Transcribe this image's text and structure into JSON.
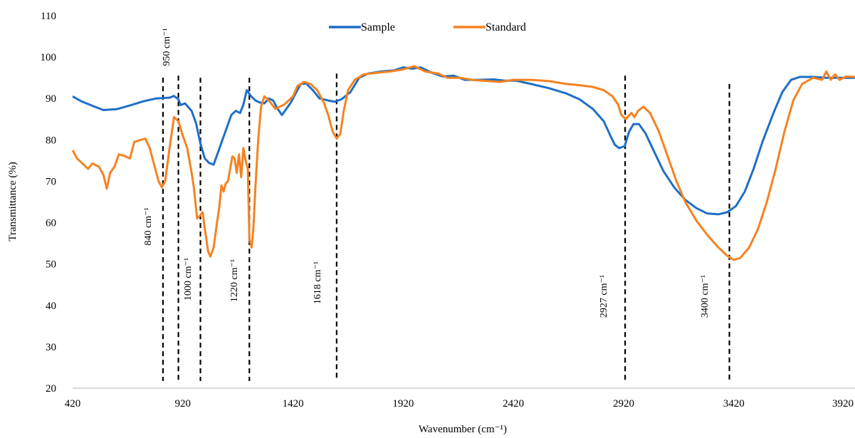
{
  "chart_data": {
    "type": "line",
    "xlabel": "Wavenumber (cm⁻¹)",
    "ylabel": "Transmittance (%)",
    "xlim": [
      420,
      3970
    ],
    "ylim": [
      20,
      110
    ],
    "x_ticks": [
      420,
      920,
      1420,
      1920,
      2420,
      2920,
      3420,
      3920
    ],
    "x_tick_labels": [
      "420",
      "920",
      "1420",
      "1920",
      "2420",
      "2920",
      "3420",
      "3920"
    ],
    "y_ticks": [
      20,
      30,
      40,
      50,
      60,
      70,
      80,
      90,
      100,
      110
    ],
    "y_tick_labels": [
      "20",
      "30",
      "40",
      "50",
      "60",
      "70",
      "80",
      "90",
      "100",
      "110"
    ],
    "grid": false,
    "legend_position": "top-center",
    "series": [
      {
        "name": "Sample",
        "color": "#1f6fc6",
        "points": [
          [
            420,
            90.5
          ],
          [
            460,
            89.3
          ],
          [
            520,
            88
          ],
          [
            560,
            87.2
          ],
          [
            620,
            87.4
          ],
          [
            680,
            88.3
          ],
          [
            740,
            89.3
          ],
          [
            800,
            90
          ],
          [
            860,
            90.2
          ],
          [
            880,
            90.6
          ],
          [
            900,
            89.8
          ],
          [
            910,
            88.4
          ],
          [
            930,
            88.8
          ],
          [
            960,
            87
          ],
          [
            980,
            84
          ],
          [
            1000,
            79
          ],
          [
            1020,
            75.5
          ],
          [
            1040,
            74.4
          ],
          [
            1060,
            74
          ],
          [
            1080,
            77
          ],
          [
            1100,
            80
          ],
          [
            1120,
            83
          ],
          [
            1140,
            86
          ],
          [
            1160,
            87
          ],
          [
            1180,
            86.5
          ],
          [
            1195,
            88.5
          ],
          [
            1210,
            92
          ],
          [
            1230,
            90.5
          ],
          [
            1250,
            89.5
          ],
          [
            1270,
            89
          ],
          [
            1290,
            88.8
          ],
          [
            1310,
            90
          ],
          [
            1330,
            89.5
          ],
          [
            1350,
            87.5
          ],
          [
            1370,
            86
          ],
          [
            1390,
            87.5
          ],
          [
            1410,
            89
          ],
          [
            1430,
            91
          ],
          [
            1455,
            93.5
          ],
          [
            1480,
            93.6
          ],
          [
            1510,
            92
          ],
          [
            1540,
            90
          ],
          [
            1580,
            89.5
          ],
          [
            1610,
            89.2
          ],
          [
            1640,
            89.8
          ],
          [
            1680,
            91.5
          ],
          [
            1720,
            95
          ],
          [
            1760,
            96
          ],
          [
            1820,
            96.5
          ],
          [
            1880,
            96.8
          ],
          [
            1920,
            97.5
          ],
          [
            1960,
            97.2
          ],
          [
            2000,
            97.5
          ],
          [
            2050,
            96.2
          ],
          [
            2100,
            95.3
          ],
          [
            2150,
            95.5
          ],
          [
            2200,
            94.5
          ],
          [
            2260,
            94.5
          ],
          [
            2330,
            94.6
          ],
          [
            2380,
            94.3
          ],
          [
            2430,
            94.3
          ],
          [
            2500,
            93.5
          ],
          [
            2580,
            92.5
          ],
          [
            2660,
            91.2
          ],
          [
            2720,
            89.8
          ],
          [
            2780,
            87.5
          ],
          [
            2830,
            84.5
          ],
          [
            2860,
            81
          ],
          [
            2880,
            78.8
          ],
          [
            2900,
            78
          ],
          [
            2925,
            78.5
          ],
          [
            2945,
            82
          ],
          [
            2965,
            83.8
          ],
          [
            2990,
            83.8
          ],
          [
            3020,
            81.5
          ],
          [
            3060,
            77
          ],
          [
            3100,
            72.5
          ],
          [
            3150,
            68.5
          ],
          [
            3200,
            65.5
          ],
          [
            3250,
            63.5
          ],
          [
            3300,
            62.2
          ],
          [
            3350,
            62
          ],
          [
            3390,
            62.5
          ],
          [
            3430,
            64
          ],
          [
            3470,
            67.5
          ],
          [
            3510,
            73
          ],
          [
            3550,
            79.5
          ],
          [
            3600,
            86.5
          ],
          [
            3640,
            91.5
          ],
          [
            3680,
            94.5
          ],
          [
            3720,
            95.2
          ],
          [
            3780,
            95.2
          ],
          [
            3840,
            95
          ],
          [
            3900,
            95
          ],
          [
            3970,
            95
          ]
        ]
      },
      {
        "name": "Standard",
        "color": "#f58220",
        "points": [
          [
            420,
            77.5
          ],
          [
            440,
            75.5
          ],
          [
            470,
            74
          ],
          [
            490,
            73
          ],
          [
            510,
            74.3
          ],
          [
            540,
            73.5
          ],
          [
            560,
            71.5
          ],
          [
            575,
            68.2
          ],
          [
            590,
            72
          ],
          [
            610,
            73.5
          ],
          [
            630,
            76.5
          ],
          [
            660,
            76
          ],
          [
            680,
            75.5
          ],
          [
            700,
            79.5
          ],
          [
            730,
            80
          ],
          [
            750,
            80.3
          ],
          [
            770,
            78
          ],
          [
            790,
            74
          ],
          [
            810,
            70
          ],
          [
            825,
            68.5
          ],
          [
            840,
            70
          ],
          [
            860,
            78
          ],
          [
            880,
            85.5
          ],
          [
            900,
            84.5
          ],
          [
            920,
            81
          ],
          [
            940,
            78
          ],
          [
            960,
            72
          ],
          [
            970,
            68.5
          ],
          [
            985,
            61
          ],
          [
            995,
            61.5
          ],
          [
            1010,
            62.5
          ],
          [
            1020,
            58.5
          ],
          [
            1035,
            53
          ],
          [
            1045,
            51.8
          ],
          [
            1060,
            54
          ],
          [
            1075,
            60
          ],
          [
            1085,
            63.5
          ],
          [
            1095,
            69
          ],
          [
            1105,
            67.5
          ],
          [
            1115,
            69.5
          ],
          [
            1125,
            70
          ],
          [
            1135,
            73
          ],
          [
            1145,
            76
          ],
          [
            1155,
            75.5
          ],
          [
            1165,
            72
          ],
          [
            1175,
            76.5
          ],
          [
            1185,
            71
          ],
          [
            1195,
            78
          ],
          [
            1205,
            75
          ],
          [
            1215,
            73
          ],
          [
            1222,
            56
          ],
          [
            1232,
            54
          ],
          [
            1240,
            58.5
          ],
          [
            1250,
            69
          ],
          [
            1262,
            80
          ],
          [
            1275,
            88
          ],
          [
            1290,
            90.5
          ],
          [
            1310,
            89.5
          ],
          [
            1325,
            88.5
          ],
          [
            1340,
            87.5
          ],
          [
            1360,
            88
          ],
          [
            1380,
            88.5
          ],
          [
            1400,
            89.5
          ],
          [
            1420,
            90.5
          ],
          [
            1440,
            93
          ],
          [
            1470,
            94
          ],
          [
            1500,
            93.5
          ],
          [
            1530,
            92
          ],
          [
            1560,
            89
          ],
          [
            1580,
            86
          ],
          [
            1600,
            82
          ],
          [
            1618,
            80.3
          ],
          [
            1635,
            81.5
          ],
          [
            1650,
            87
          ],
          [
            1670,
            92
          ],
          [
            1700,
            94.5
          ],
          [
            1740,
            95.8
          ],
          [
            1800,
            96.2
          ],
          [
            1860,
            96.5
          ],
          [
            1920,
            97
          ],
          [
            1970,
            97.8
          ],
          [
            2020,
            96.5
          ],
          [
            2080,
            96
          ],
          [
            2120,
            95
          ],
          [
            2180,
            95
          ],
          [
            2230,
            94.5
          ],
          [
            2300,
            94.2
          ],
          [
            2360,
            94
          ],
          [
            2420,
            94.5
          ],
          [
            2500,
            94.5
          ],
          [
            2580,
            94.2
          ],
          [
            2660,
            93.5
          ],
          [
            2720,
            93.2
          ],
          [
            2780,
            92.8
          ],
          [
            2830,
            92
          ],
          [
            2870,
            90.5
          ],
          [
            2895,
            88.5
          ],
          [
            2910,
            86
          ],
          [
            2930,
            85
          ],
          [
            2955,
            86.5
          ],
          [
            2970,
            85.5
          ],
          [
            2985,
            87
          ],
          [
            3010,
            88
          ],
          [
            3040,
            86.5
          ],
          [
            3080,
            82
          ],
          [
            3120,
            76
          ],
          [
            3160,
            70
          ],
          [
            3200,
            65
          ],
          [
            3250,
            60.5
          ],
          [
            3300,
            57
          ],
          [
            3350,
            54
          ],
          [
            3390,
            52
          ],
          [
            3420,
            51
          ],
          [
            3450,
            51.5
          ],
          [
            3490,
            54
          ],
          [
            3530,
            58.5
          ],
          [
            3570,
            65
          ],
          [
            3610,
            73
          ],
          [
            3650,
            82
          ],
          [
            3690,
            89.5
          ],
          [
            3730,
            93.5
          ],
          [
            3780,
            95
          ],
          [
            3820,
            94.5
          ],
          [
            3840,
            96.5
          ],
          [
            3860,
            94.5
          ],
          [
            3880,
            95.8
          ],
          [
            3900,
            94.5
          ],
          [
            3930,
            95.3
          ],
          [
            3970,
            95.2
          ]
        ]
      }
    ],
    "annotations": [
      {
        "x": 840,
        "text": "840 cm⁻¹"
      },
      {
        "x": 950,
        "text": "950 cm⁻¹"
      },
      {
        "x": 1000,
        "text": "1000 cm⁻¹"
      },
      {
        "x": 1220,
        "text": "1220 cm⁻¹"
      },
      {
        "x": 1618,
        "text": "1618 cm⁻¹"
      },
      {
        "x": 2927,
        "text": "2927 cm⁻¹"
      },
      {
        "x": 3400,
        "text": "3400 cm⁻¹"
      }
    ],
    "reference_lines": [
      {
        "x": 830,
        "y_top": 95
      },
      {
        "x": 900,
        "y_top": 95.5
      },
      {
        "x": 1000,
        "y_top": 95
      },
      {
        "x": 1222,
        "y_top": 95
      },
      {
        "x": 1618,
        "y_top": 96
      },
      {
        "x": 2927,
        "y_top": 95.5
      },
      {
        "x": 3400,
        "y_top": 93.5
      }
    ]
  }
}
